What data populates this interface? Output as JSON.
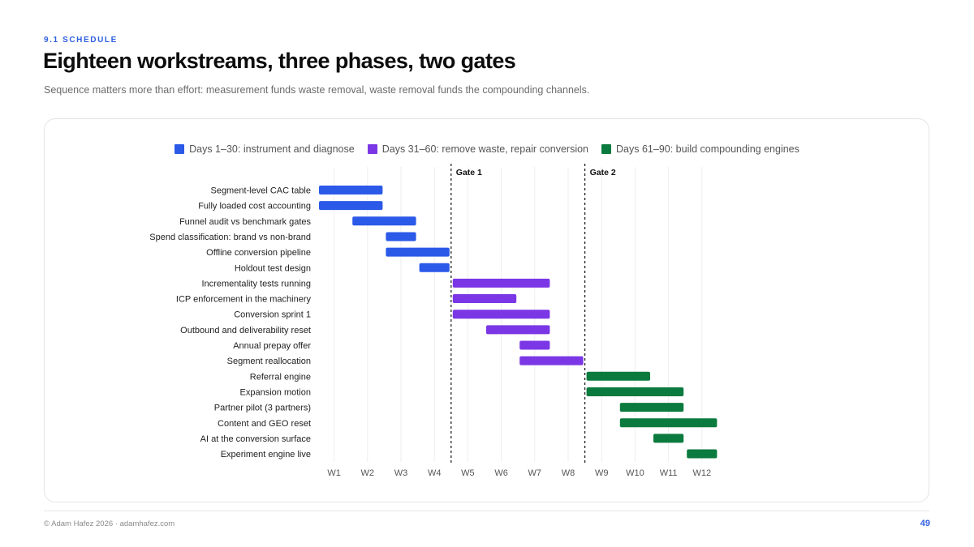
{
  "header": {
    "eyebrow": "9.1 SCHEDULE",
    "title": "Eighteen workstreams, three phases, two gates",
    "subtitle": "Sequence matters more than effort: measurement funds waste removal, waste removal funds the compounding channels."
  },
  "footer": {
    "credit": "© Adam Hafez 2026 · adamhafez.com",
    "page": "49"
  },
  "chart_data": {
    "type": "gantt",
    "x_unit": "week",
    "xlim": [
      0.5,
      12.5
    ],
    "categories": [
      "W1",
      "W2",
      "W3",
      "W4",
      "W5",
      "W6",
      "W7",
      "W8",
      "W9",
      "W10",
      "W11",
      "W12"
    ],
    "grid": "vertical",
    "legend_position": "top-center",
    "phases": [
      {
        "id": "p1",
        "label": "Days 1–30: instrument and diagnose",
        "color": "#2b59e8"
      },
      {
        "id": "p2",
        "label": "Days 31–60: remove waste, repair conversion",
        "color": "#7b37e6"
      },
      {
        "id": "p3",
        "label": "Days 61–90: build compounding engines",
        "color": "#0b7a3e"
      }
    ],
    "gates": [
      {
        "label": "Gate 1",
        "at": 4.5
      },
      {
        "label": "Gate 2",
        "at": 8.5
      }
    ],
    "tasks": [
      {
        "name": "Segment-level CAC table",
        "phase": "p1",
        "start": 1,
        "end": 2
      },
      {
        "name": "Fully loaded cost accounting",
        "phase": "p1",
        "start": 1,
        "end": 2
      },
      {
        "name": "Funnel audit vs benchmark gates",
        "phase": "p1",
        "start": 2,
        "end": 3
      },
      {
        "name": "Spend classification: brand vs non-brand",
        "phase": "p1",
        "start": 3,
        "end": 3
      },
      {
        "name": "Offline conversion pipeline",
        "phase": "p1",
        "start": 3,
        "end": 4
      },
      {
        "name": "Holdout test design",
        "phase": "p1",
        "start": 4,
        "end": 4
      },
      {
        "name": "Incrementality tests running",
        "phase": "p2",
        "start": 5,
        "end": 7
      },
      {
        "name": "ICP enforcement in the machinery",
        "phase": "p2",
        "start": 5,
        "end": 6
      },
      {
        "name": "Conversion sprint 1",
        "phase": "p2",
        "start": 5,
        "end": 7
      },
      {
        "name": "Outbound and deliverability reset",
        "phase": "p2",
        "start": 6,
        "end": 7
      },
      {
        "name": "Annual prepay offer",
        "phase": "p2",
        "start": 7,
        "end": 7
      },
      {
        "name": "Segment reallocation",
        "phase": "p2",
        "start": 7,
        "end": 8
      },
      {
        "name": "Referral engine",
        "phase": "p3",
        "start": 9,
        "end": 10
      },
      {
        "name": "Expansion motion",
        "phase": "p3",
        "start": 9,
        "end": 11
      },
      {
        "name": "Partner pilot (3 partners)",
        "phase": "p3",
        "start": 10,
        "end": 11
      },
      {
        "name": "Content and GEO reset",
        "phase": "p3",
        "start": 10,
        "end": 12
      },
      {
        "name": "AI at the conversion surface",
        "phase": "p3",
        "start": 11,
        "end": 11
      },
      {
        "name": "Experiment engine live",
        "phase": "p3",
        "start": 12,
        "end": 12
      }
    ]
  }
}
